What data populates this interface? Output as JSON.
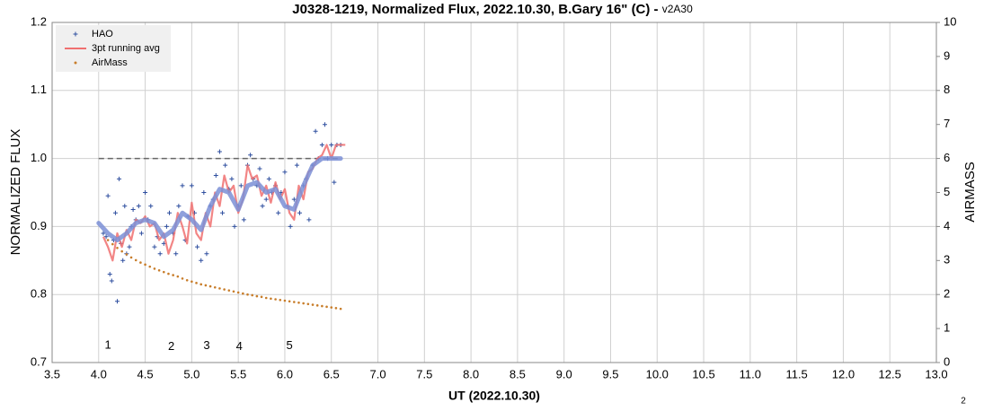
{
  "chart_data": {
    "type": "scatter",
    "title": "J0328-1219, Normalized Flux, 2022.10.30, B.Gary 16\" (C) -",
    "title_suffix": "v2A30",
    "xlabel": "UT (2022.10.30)",
    "ylabel": "NORMALIZED FLUX",
    "y2label": "AIRMASS",
    "page_number": "2",
    "xlim": [
      3.5,
      13.0
    ],
    "xticks": [
      3.5,
      {
        "value": 4,
        "label": "4.0"
      },
      4.5,
      {
        "value": 5,
        "label": "5.0"
      },
      5.5,
      {
        "value": 6,
        "label": "6.0"
      },
      6.5,
      {
        "value": 7,
        "label": "7.0"
      },
      7.5,
      {
        "value": 8,
        "label": "8.0"
      },
      8.5,
      {
        "value": 9,
        "label": "9.0"
      },
      9.5,
      {
        "value": 10,
        "label": "10.0"
      },
      10.5,
      {
        "value": 11,
        "label": "11.0"
      },
      11.5,
      {
        "value": 12,
        "label": "12.0"
      },
      12.5,
      {
        "value": 13,
        "label": "13.0"
      }
    ],
    "ylim": [
      0.7,
      1.2
    ],
    "yticks": [
      0.7,
      0.8,
      0.9,
      {
        "value": 1,
        "label": "1.0"
      },
      1.1,
      1.2
    ],
    "y2lim": [
      0,
      10
    ],
    "y2ticks": [
      0,
      1,
      2,
      3,
      4,
      5,
      6,
      7,
      8,
      9,
      10
    ],
    "grid": true,
    "legend": "upper-left",
    "series": [
      {
        "name": "HAO",
        "color": "#2f4f9f",
        "style": "plus",
        "x": [
          4.05,
          4.08,
          4.1,
          4.12,
          4.14,
          4.16,
          4.18,
          4.2,
          4.22,
          4.24,
          4.26,
          4.28,
          4.3,
          4.33,
          4.35,
          4.37,
          4.4,
          4.43,
          4.46,
          4.5,
          4.53,
          4.56,
          4.6,
          4.63,
          4.66,
          4.7,
          4.73,
          4.76,
          4.8,
          4.83,
          4.86,
          4.9,
          4.93,
          4.96,
          5.0,
          5.03,
          5.06,
          5.1,
          5.13,
          5.16,
          5.2,
          5.23,
          5.26,
          5.3,
          5.33,
          5.36,
          5.4,
          5.43,
          5.46,
          5.5,
          5.53,
          5.56,
          5.6,
          5.63,
          5.66,
          5.7,
          5.73,
          5.76,
          5.8,
          5.83,
          5.86,
          5.9,
          5.93,
          5.96,
          6.0,
          6.03,
          6.06,
          6.1,
          6.13,
          6.16,
          6.2,
          6.23,
          6.26,
          6.3,
          6.33,
          6.36,
          6.4,
          6.43,
          6.46,
          6.5,
          6.53,
          6.56,
          6.6
        ],
        "values": [
          0.89,
          0.885,
          0.945,
          0.83,
          0.82,
          0.88,
          0.92,
          0.79,
          0.97,
          0.875,
          0.85,
          0.93,
          0.86,
          0.87,
          0.9,
          0.925,
          0.91,
          0.93,
          0.89,
          0.95,
          0.91,
          0.93,
          0.87,
          0.885,
          0.86,
          0.875,
          0.9,
          0.92,
          0.89,
          0.86,
          0.93,
          0.96,
          0.88,
          0.915,
          0.96,
          0.92,
          0.87,
          0.85,
          0.95,
          0.86,
          0.93,
          0.94,
          0.975,
          1.01,
          0.92,
          0.99,
          0.955,
          0.97,
          0.9,
          0.93,
          0.96,
          0.91,
          0.99,
          1.005,
          0.97,
          0.96,
          0.985,
          0.93,
          0.94,
          0.97,
          0.95,
          0.96,
          0.92,
          0.95,
          0.98,
          0.93,
          0.9,
          0.94,
          0.99,
          0.92,
          0.96,
          0.97,
          0.91,
          0.99,
          1.04,
          1.0,
          1.02,
          1.05,
          1.0,
          1.02,
          0.965,
          1.02,
          1.02
        ]
      },
      {
        "name": "3pt running avg",
        "color": "#f07070",
        "style": "line",
        "x": [
          4.05,
          4.1,
          4.15,
          4.2,
          4.25,
          4.3,
          4.35,
          4.4,
          4.45,
          4.5,
          4.55,
          4.6,
          4.65,
          4.7,
          4.75,
          4.8,
          4.85,
          4.9,
          4.95,
          5.0,
          5.05,
          5.1,
          5.15,
          5.2,
          5.25,
          5.3,
          5.35,
          5.4,
          5.45,
          5.5,
          5.55,
          5.6,
          5.65,
          5.7,
          5.75,
          5.8,
          5.85,
          5.9,
          5.95,
          6.0,
          6.05,
          6.1,
          6.15,
          6.2,
          6.25,
          6.3,
          6.35,
          6.4,
          6.45,
          6.5,
          6.55,
          6.6,
          6.65
        ],
        "values": [
          0.885,
          0.87,
          0.85,
          0.89,
          0.87,
          0.895,
          0.88,
          0.91,
          0.905,
          0.915,
          0.9,
          0.905,
          0.88,
          0.89,
          0.86,
          0.88,
          0.92,
          0.9,
          0.875,
          0.935,
          0.89,
          0.88,
          0.92,
          0.9,
          0.95,
          0.93,
          0.975,
          0.95,
          0.96,
          0.92,
          0.94,
          0.99,
          0.97,
          0.975,
          0.945,
          0.96,
          0.935,
          0.965,
          0.94,
          0.955,
          0.92,
          0.91,
          0.96,
          0.94,
          0.98,
          0.985,
          1.0,
          1.005,
          1.02,
          1.0,
          1.02,
          1.02,
          1.02
        ]
      },
      {
        "name": "AirMass",
        "color": "#c87d2a",
        "style": "dot",
        "axis": "y2",
        "x": [
          4.1,
          4.15,
          4.2,
          4.25,
          4.3,
          4.35,
          4.4,
          4.45,
          4.5,
          4.55,
          4.6,
          4.65,
          4.7,
          4.75,
          4.8,
          4.85,
          4.9,
          4.95,
          5.0,
          5.05,
          5.1,
          5.15,
          5.2,
          5.25,
          5.3,
          5.35,
          5.4,
          5.45,
          5.5,
          5.55,
          5.6,
          5.65,
          5.7,
          5.75,
          5.8,
          5.85,
          5.9,
          5.95,
          6.0,
          6.05,
          6.1,
          6.15,
          6.2,
          6.25,
          6.3,
          6.35,
          6.4,
          6.45,
          6.5,
          6.55,
          6.6
        ],
        "values": [
          3.6,
          3.48,
          3.37,
          3.27,
          3.18,
          3.09,
          3.01,
          2.94,
          2.88,
          2.82,
          2.76,
          2.71,
          2.66,
          2.61,
          2.57,
          2.53,
          2.47,
          2.42,
          2.38,
          2.34,
          2.3,
          2.27,
          2.24,
          2.21,
          2.18,
          2.15,
          2.12,
          2.09,
          2.06,
          2.03,
          2.0,
          1.98,
          1.95,
          1.93,
          1.9,
          1.88,
          1.86,
          1.84,
          1.82,
          1.8,
          1.78,
          1.76,
          1.74,
          1.72,
          1.7,
          1.68,
          1.66,
          1.64,
          1.62,
          1.6,
          1.58
        ]
      }
    ],
    "fit": {
      "color": "#7b8fd6",
      "x": [
        4.0,
        4.1,
        4.2,
        4.3,
        4.4,
        4.5,
        4.6,
        4.7,
        4.8,
        4.9,
        5.0,
        5.1,
        5.2,
        5.3,
        5.4,
        5.5,
        5.6,
        5.7,
        5.8,
        5.9,
        6.0,
        6.1,
        6.2,
        6.3,
        6.4,
        6.5,
        6.6
      ],
      "values": [
        0.905,
        0.89,
        0.88,
        0.89,
        0.905,
        0.91,
        0.905,
        0.885,
        0.895,
        0.92,
        0.91,
        0.895,
        0.93,
        0.955,
        0.95,
        0.925,
        0.96,
        0.965,
        0.95,
        0.955,
        0.93,
        0.925,
        0.96,
        0.99,
        1.0,
        1.0,
        1.0
      ]
    },
    "reference_line": {
      "color": "#666666",
      "x": [
        4.0,
        6.6
      ],
      "values": [
        1.0,
        1.0
      ]
    },
    "annotations": [
      {
        "text": "1",
        "x": 4.1,
        "y": 0.725
      },
      {
        "text": "2",
        "x": 4.78,
        "y": 0.723
      },
      {
        "text": "3",
        "x": 5.16,
        "y": 0.724
      },
      {
        "text": "4",
        "x": 5.51,
        "y": 0.723
      },
      {
        "text": "5",
        "x": 6.05,
        "y": 0.724
      }
    ]
  }
}
